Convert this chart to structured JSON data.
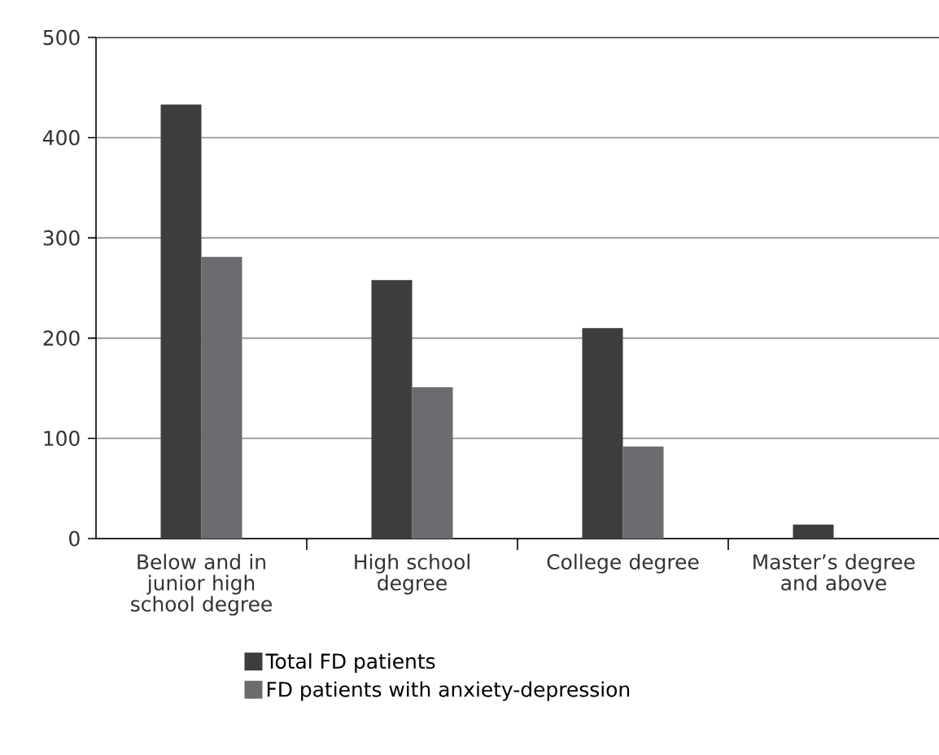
{
  "chart_data": {
    "type": "bar",
    "categories": [
      "Below and in junior high school degree",
      "High school degree",
      "College degree",
      "Master’s degree and above"
    ],
    "series": [
      {
        "name": "Total FD patients",
        "color": "#3d3d3d",
        "values": [
          433,
          258,
          210,
          14
        ]
      },
      {
        "name": "FD patients with anxiety-depression",
        "color": "#6b6c70",
        "values": [
          281,
          151,
          92,
          0
        ]
      }
    ],
    "ylim": [
      0,
      500
    ],
    "yticks": [
      0,
      100,
      200,
      300,
      400,
      500
    ],
    "grid": "y",
    "legend": "bottom"
  }
}
